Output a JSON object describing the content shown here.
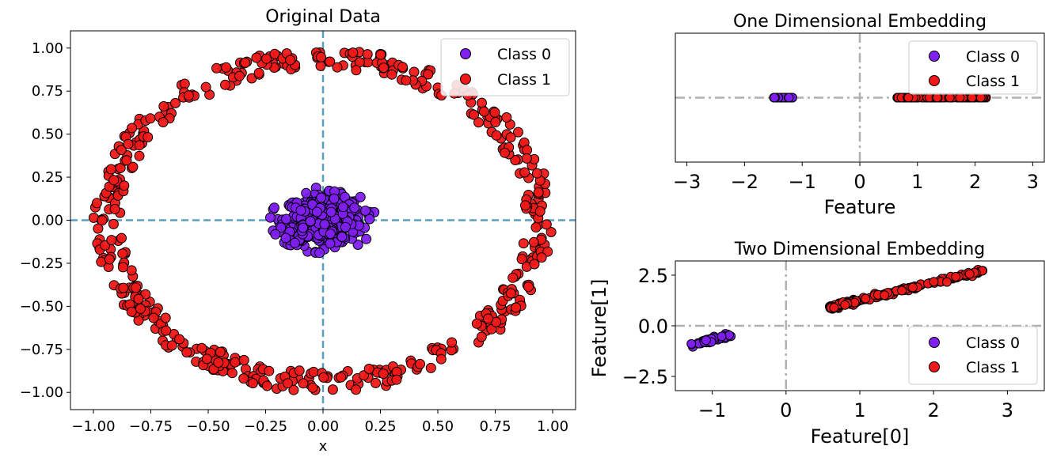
{
  "chart_data": [
    {
      "id": "original",
      "type": "scatter",
      "title": "Original Data",
      "xlabel": "x",
      "ylabel": "",
      "xlim": [
        -1.1,
        1.1
      ],
      "ylim": [
        -1.1,
        1.1
      ],
      "xticks": [
        -1.0,
        -0.75,
        -0.5,
        -0.25,
        0.0,
        0.25,
        0.5,
        0.75,
        1.0
      ],
      "xtick_labels": [
        "−1.00",
        "−0.75",
        "−0.50",
        "−0.25",
        "0.00",
        "0.25",
        "0.50",
        "0.75",
        "1.00"
      ],
      "yticks": [
        1.0,
        0.75,
        0.5,
        0.25,
        0.0,
        -0.25,
        -0.5,
        -0.75,
        -1.0
      ],
      "ytick_labels": [
        "1.00",
        "0.75",
        "0.50",
        "0.25",
        "0.00",
        "−0.25",
        "−0.50",
        "−0.75",
        "−1.00"
      ],
      "reference_lines": {
        "x": 0,
        "y": 0,
        "style": "dashed",
        "color": "#5a9fc0"
      },
      "legend": {
        "position": "top-right",
        "entries": [
          "Class 0",
          "Class 1"
        ]
      },
      "series": [
        {
          "name": "Class 0",
          "color": "#7f1ff0",
          "shape": "blob",
          "center": [
            0.0,
            0.0
          ],
          "radius": 0.2,
          "n": 500
        },
        {
          "name": "Class 1",
          "color": "#f01818",
          "shape": "ring",
          "center": [
            0.0,
            0.0
          ],
          "radius": [
            0.88,
            1.0
          ],
          "n": 500
        }
      ]
    },
    {
      "id": "one-dim",
      "type": "scatter",
      "title": "One Dimensional Embedding",
      "xlabel": "Feature",
      "ylabel": "",
      "xlim": [
        -3.2,
        3.2
      ],
      "ylim": [
        -1,
        1
      ],
      "xticks": [
        -3,
        -2,
        -1,
        0,
        1,
        2,
        3
      ],
      "xtick_labels": [
        "−3",
        "−2",
        "−1",
        "0",
        "1",
        "2",
        "3"
      ],
      "reference_lines": {
        "x": 0,
        "y": 0,
        "style": "dashdot",
        "color": "#b0b0b0"
      },
      "legend": {
        "position": "top-right",
        "entries": [
          "Class 0",
          "Class 1"
        ]
      },
      "series": [
        {
          "name": "Class 0",
          "color": "#7f1ff0",
          "x_range": [
            -1.5,
            -1.15
          ],
          "n": 40
        },
        {
          "name": "Class 1",
          "color": "#f01818",
          "x_range": [
            0.65,
            2.2
          ],
          "n": 120
        }
      ]
    },
    {
      "id": "two-dim",
      "type": "scatter",
      "title": "Two Dimensional Embedding",
      "xlabel": "Feature[0]",
      "ylabel": "Feature[1]",
      "xlim": [
        -1.5,
        3.5
      ],
      "ylim": [
        -3.2,
        3.2
      ],
      "xticks": [
        -1,
        0,
        1,
        2,
        3
      ],
      "xtick_labels": [
        "−1",
        "0",
        "1",
        "2",
        "3"
      ],
      "yticks": [
        2.5,
        0.0,
        -2.5
      ],
      "ytick_labels": [
        "2.5",
        "0.0",
        "−2.5"
      ],
      "reference_lines": {
        "x": 0,
        "y": 0,
        "style": "dashdot",
        "color": "#b0b0b0"
      },
      "legend": {
        "position": "bottom-right",
        "entries": [
          "Class 0",
          "Class 1"
        ]
      },
      "series": [
        {
          "name": "Class 0",
          "color": "#7f1ff0",
          "line_from": [
            -1.27,
            -0.95
          ],
          "line_to": [
            -0.78,
            -0.45
          ],
          "n": 45
        },
        {
          "name": "Class 1",
          "color": "#f01818",
          "line_from": [
            0.6,
            0.9
          ],
          "line_to": [
            2.7,
            2.75
          ],
          "n": 160
        }
      ]
    }
  ]
}
